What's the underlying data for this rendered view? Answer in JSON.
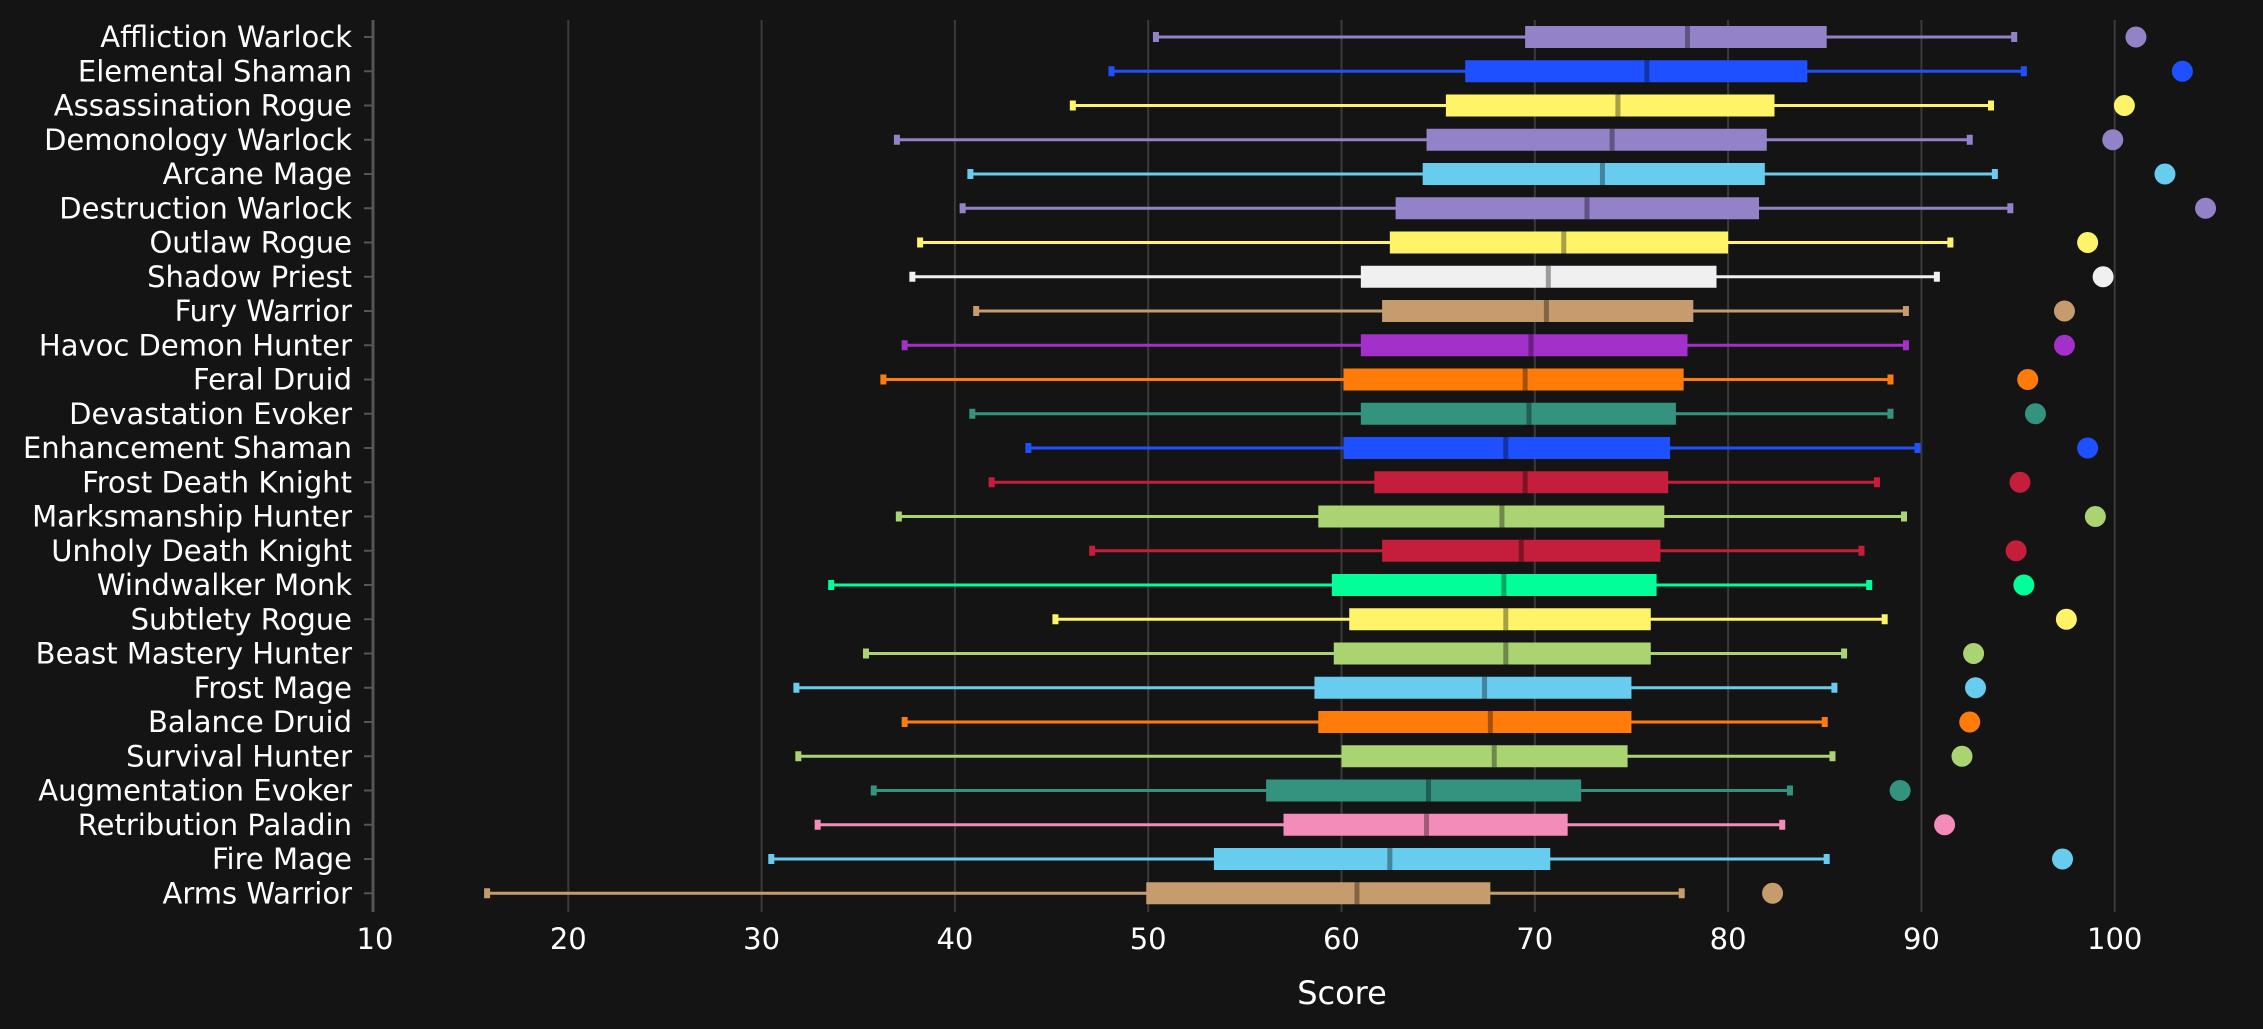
{
  "chart_data": {
    "type": "box",
    "xlabel": "Score",
    "xlim": [
      10,
      105
    ],
    "xticks": [
      10,
      20,
      30,
      40,
      50,
      60,
      70,
      80,
      90,
      100
    ],
    "grid": "vertical",
    "series": [
      {
        "name": "Affliction Warlock",
        "color": "#9482c9",
        "min": 50.4,
        "q1": 69.5,
        "median": 77.9,
        "q3": 85.1,
        "max": 94.8,
        "outlier": 101.1
      },
      {
        "name": "Elemental Shaman",
        "color": "#1e50ff",
        "min": 48.1,
        "q1": 66.4,
        "median": 75.8,
        "q3": 84.1,
        "max": 95.3,
        "outlier": 103.5
      },
      {
        "name": "Assassination Rogue",
        "color": "#fff468",
        "min": 46.1,
        "q1": 65.4,
        "median": 74.3,
        "q3": 82.4,
        "max": 93.6,
        "outlier": 100.5
      },
      {
        "name": "Demonology Warlock",
        "color": "#9482c9",
        "min": 37.0,
        "q1": 64.4,
        "median": 74.0,
        "q3": 82.0,
        "max": 92.5,
        "outlier": 99.9
      },
      {
        "name": "Arcane Mage",
        "color": "#68ccef",
        "min": 40.8,
        "q1": 64.2,
        "median": 73.5,
        "q3": 81.9,
        "max": 93.8,
        "outlier": 102.6
      },
      {
        "name": "Destruction Warlock",
        "color": "#9482c9",
        "min": 40.4,
        "q1": 62.8,
        "median": 72.7,
        "q3": 81.6,
        "max": 94.6,
        "outlier": 104.7
      },
      {
        "name": "Outlaw Rogue",
        "color": "#fff468",
        "min": 38.2,
        "q1": 62.5,
        "median": 71.5,
        "q3": 80.0,
        "max": 91.5,
        "outlier": 98.6
      },
      {
        "name": "Shadow Priest",
        "color": "#f0f0f0",
        "min": 37.8,
        "q1": 61.0,
        "median": 70.7,
        "q3": 79.4,
        "max": 90.8,
        "outlier": 99.4
      },
      {
        "name": "Fury Warrior",
        "color": "#c69b6d",
        "min": 41.1,
        "q1": 62.1,
        "median": 70.6,
        "q3": 78.2,
        "max": 89.2,
        "outlier": 97.4
      },
      {
        "name": "Havoc Demon Hunter",
        "color": "#a330c9",
        "min": 37.4,
        "q1": 61.0,
        "median": 69.8,
        "q3": 77.9,
        "max": 89.2,
        "outlier": 97.4
      },
      {
        "name": "Feral Druid",
        "color": "#ff7c0a",
        "min": 36.3,
        "q1": 60.1,
        "median": 69.5,
        "q3": 77.7,
        "max": 88.4,
        "outlier": 95.5
      },
      {
        "name": "Devastation Evoker",
        "color": "#33937f",
        "min": 40.9,
        "q1": 61.0,
        "median": 69.7,
        "q3": 77.3,
        "max": 88.4,
        "outlier": 95.9
      },
      {
        "name": "Enhancement Shaman",
        "color": "#1e50ff",
        "min": 43.8,
        "q1": 60.1,
        "median": 68.5,
        "q3": 77.0,
        "max": 89.8,
        "outlier": 98.6
      },
      {
        "name": "Frost Death Knight",
        "color": "#c41e3a",
        "min": 41.9,
        "q1": 61.7,
        "median": 69.5,
        "q3": 76.9,
        "max": 87.7,
        "outlier": 95.1
      },
      {
        "name": "Marksmanship Hunter",
        "color": "#aad372",
        "min": 37.1,
        "q1": 58.8,
        "median": 68.3,
        "q3": 76.7,
        "max": 89.1,
        "outlier": 99.0
      },
      {
        "name": "Unholy Death Knight",
        "color": "#c41e3a",
        "min": 47.1,
        "q1": 62.1,
        "median": 69.3,
        "q3": 76.5,
        "max": 86.9,
        "outlier": 94.9
      },
      {
        "name": "Windwalker Monk",
        "color": "#00ff98",
        "min": 33.6,
        "q1": 59.5,
        "median": 68.4,
        "q3": 76.3,
        "max": 87.3,
        "outlier": 95.3
      },
      {
        "name": "Subtlety Rogue",
        "color": "#fff468",
        "min": 45.2,
        "q1": 60.4,
        "median": 68.5,
        "q3": 76.0,
        "max": 88.1,
        "outlier": 97.5
      },
      {
        "name": "Beast Mastery Hunter",
        "color": "#aad372",
        "min": 35.4,
        "q1": 59.6,
        "median": 68.5,
        "q3": 76.0,
        "max": 86.0,
        "outlier": 92.7
      },
      {
        "name": "Frost Mage",
        "color": "#68ccef",
        "min": 31.8,
        "q1": 58.6,
        "median": 67.4,
        "q3": 75.0,
        "max": 85.5,
        "outlier": 92.8
      },
      {
        "name": "Balance Druid",
        "color": "#ff7c0a",
        "min": 37.4,
        "q1": 58.8,
        "median": 67.7,
        "q3": 75.0,
        "max": 85.0,
        "outlier": 92.5
      },
      {
        "name": "Survival Hunter",
        "color": "#aad372",
        "min": 31.9,
        "q1": 60.0,
        "median": 67.9,
        "q3": 74.8,
        "max": 85.4,
        "outlier": 92.1
      },
      {
        "name": "Augmentation Evoker",
        "color": "#33937f",
        "min": 35.8,
        "q1": 56.1,
        "median": 64.5,
        "q3": 72.4,
        "max": 83.2,
        "outlier": 88.9
      },
      {
        "name": "Retribution Paladin",
        "color": "#f48cba",
        "min": 32.9,
        "q1": 57.0,
        "median": 64.4,
        "q3": 71.7,
        "max": 82.8,
        "outlier": 91.2
      },
      {
        "name": "Fire Mage",
        "color": "#68ccef",
        "min": 30.5,
        "q1": 53.4,
        "median": 62.5,
        "q3": 70.8,
        "max": 85.1,
        "outlier": 97.3
      },
      {
        "name": "Arms Warrior",
        "color": "#c69b6d",
        "min": 15.8,
        "q1": 49.9,
        "median": 60.8,
        "q3": 67.7,
        "max": 77.6,
        "outlier": 82.3
      }
    ]
  }
}
